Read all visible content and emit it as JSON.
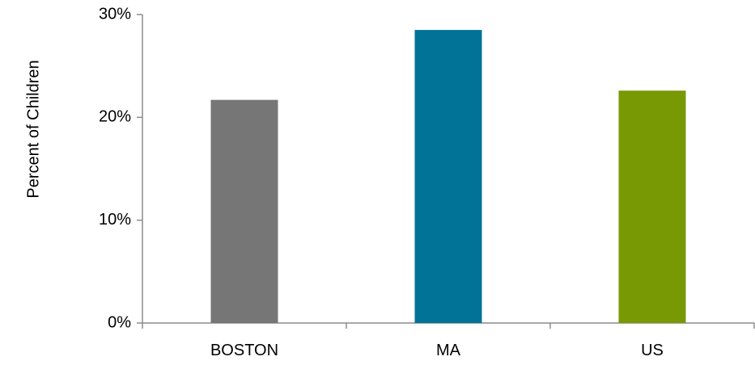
{
  "chart_data": {
    "type": "bar",
    "title": "",
    "xlabel": "",
    "ylabel": "Percent of Children",
    "categories": [
      "BOSTON",
      "MA",
      "US"
    ],
    "values": [
      21.7,
      28.5,
      22.6
    ],
    "bar_colors": [
      "#767676",
      "#007396",
      "#789904"
    ],
    "ylim": [
      0,
      30
    ],
    "yticks": [
      0,
      10,
      20,
      30
    ],
    "ytick_labels": [
      "0%",
      "10%",
      "20%",
      "30%"
    ],
    "grid": false,
    "legend": "none"
  }
}
